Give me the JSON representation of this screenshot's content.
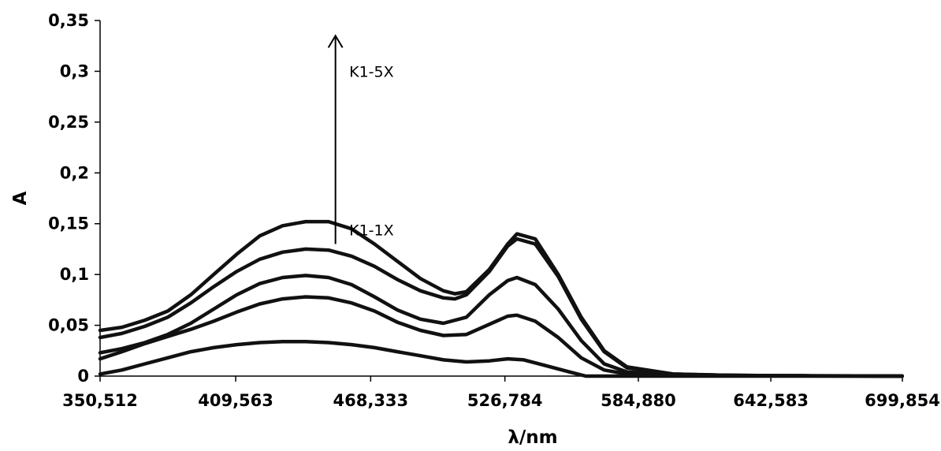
{
  "chart_data": {
    "type": "line",
    "title": "",
    "xlabel": "λ/nm",
    "ylabel": "A",
    "xlim": [
      350.512,
      699.854
    ],
    "ylim": [
      0,
      0.35
    ],
    "x_ticks": [
      350.512,
      409.563,
      468.333,
      526.784,
      584.88,
      642.583,
      699.854
    ],
    "x_tick_labels": [
      "350,512",
      "409,563",
      "468,333",
      "526,784",
      "584,880",
      "642,583",
      "699,854"
    ],
    "y_ticks": [
      0,
      0.05,
      0.1,
      0.15,
      0.2,
      0.25,
      0.3,
      0.35
    ],
    "y_tick_labels": [
      "0",
      "0,05",
      "0,1",
      "0,15",
      "0,2",
      "0,25",
      "0,3",
      "0,35"
    ],
    "grid": false,
    "line_color": "#111111",
    "annotations": [
      {
        "text": "K1-5X",
        "x": 459,
        "y": 0.3
      },
      {
        "text": "K1-1X",
        "x": 459,
        "y": 0.144
      }
    ],
    "arrow": {
      "x": 453,
      "y_start": 0.13,
      "y_end": 0.335
    },
    "series": [
      {
        "x": [
          350.5,
          360,
          370,
          380,
          390,
          400,
          410,
          420,
          430,
          440,
          450,
          460,
          470,
          480,
          490,
          500,
          505,
          510,
          520,
          528,
          532,
          540,
          550,
          560,
          570,
          580,
          600,
          620,
          640,
          660,
          680,
          699.8
        ],
        "values": [
          0.045,
          0.048,
          0.055,
          0.064,
          0.08,
          0.1,
          0.12,
          0.138,
          0.148,
          0.152,
          0.152,
          0.145,
          0.13,
          0.113,
          0.096,
          0.084,
          0.081,
          0.083,
          0.105,
          0.13,
          0.14,
          0.135,
          0.1,
          0.058,
          0.025,
          0.009,
          0.002,
          0.001,
          0.0005,
          0.0003,
          0.0002,
          0
        ]
      },
      {
        "x": [
          350.5,
          360,
          370,
          380,
          390,
          400,
          410,
          420,
          430,
          440,
          450,
          460,
          470,
          480,
          490,
          500,
          505,
          510,
          520,
          528,
          532,
          540,
          550,
          560,
          570,
          580,
          600,
          620,
          640,
          660,
          680,
          699.8
        ],
        "values": [
          0.038,
          0.042,
          0.049,
          0.058,
          0.072,
          0.088,
          0.103,
          0.115,
          0.122,
          0.125,
          0.124,
          0.118,
          0.108,
          0.095,
          0.084,
          0.077,
          0.076,
          0.08,
          0.103,
          0.128,
          0.135,
          0.13,
          0.098,
          0.056,
          0.024,
          0.008,
          0.002,
          0.001,
          0.0005,
          0.0003,
          0.0002,
          0
        ]
      },
      {
        "x": [
          350.5,
          360,
          370,
          380,
          390,
          400,
          410,
          420,
          430,
          440,
          450,
          460,
          470,
          480,
          490,
          500,
          510,
          520,
          528,
          532,
          540,
          550,
          560,
          570,
          580,
          600,
          620,
          640,
          660,
          680,
          699.8
        ],
        "values": [
          0.023,
          0.027,
          0.033,
          0.041,
          0.052,
          0.066,
          0.08,
          0.091,
          0.097,
          0.099,
          0.097,
          0.09,
          0.078,
          0.065,
          0.056,
          0.052,
          0.058,
          0.08,
          0.094,
          0.097,
          0.09,
          0.066,
          0.035,
          0.012,
          0.004,
          0.001,
          0.0005,
          0.0003,
          0.0002,
          0.0001,
          0
        ]
      },
      {
        "x": [
          350.5,
          360,
          370,
          380,
          390,
          400,
          410,
          420,
          430,
          440,
          450,
          460,
          470,
          480,
          490,
          500,
          510,
          520,
          528,
          532,
          540,
          550,
          560,
          570,
          580,
          600,
          620,
          640,
          660,
          680,
          699.8
        ],
        "values": [
          0.017,
          0.024,
          0.032,
          0.039,
          0.046,
          0.054,
          0.063,
          0.071,
          0.076,
          0.078,
          0.077,
          0.072,
          0.064,
          0.053,
          0.045,
          0.04,
          0.041,
          0.051,
          0.059,
          0.06,
          0.054,
          0.038,
          0.018,
          0.006,
          0.002,
          0.001,
          0.0005,
          0.0003,
          0.0002,
          0.0001,
          0
        ]
      },
      {
        "x": [
          350.5,
          360,
          370,
          380,
          390,
          400,
          410,
          420,
          430,
          440,
          450,
          460,
          470,
          480,
          490,
          500,
          510,
          520,
          528,
          535,
          545,
          555,
          562,
          570,
          580,
          600,
          620,
          640,
          660,
          680,
          699.8
        ],
        "values": [
          0.002,
          0.006,
          0.012,
          0.018,
          0.024,
          0.028,
          0.031,
          0.033,
          0.034,
          0.034,
          0.033,
          0.031,
          0.028,
          0.024,
          0.02,
          0.016,
          0.014,
          0.015,
          0.017,
          0.016,
          0.01,
          0.004,
          0.0,
          0.0,
          0.0,
          0.0,
          0.0,
          0.0,
          0.0,
          0.0,
          0.0
        ]
      }
    ]
  }
}
